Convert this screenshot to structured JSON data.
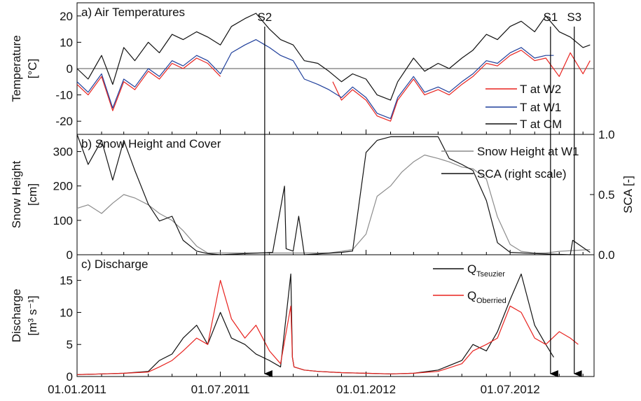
{
  "chart_data": [
    {
      "type": "line",
      "title": "a) Air Temperatures",
      "ylabel": [
        "Temperature",
        "[°C]"
      ],
      "ylim": [
        -25,
        25
      ],
      "yticks": [
        -20,
        -10,
        0,
        10,
        20
      ],
      "x_range": [
        "2011-01-01",
        "2012-10-15"
      ],
      "zero_line": true,
      "legend_position": "lower-right",
      "series": [
        {
          "name": "T at W2",
          "color": "#e8231f",
          "x": [
            "2011-01-01",
            "2011-01-15",
            "2011-02-01",
            "2011-02-15",
            "2011-03-01",
            "2011-03-15",
            "2011-04-01",
            "2011-04-15",
            "2011-05-01",
            "2011-05-15",
            "2011-06-01",
            "2011-06-15",
            "2011-07-01"
          ],
          "values": [
            -6,
            -10,
            -3,
            -16,
            -5,
            -8,
            -1,
            -4,
            2,
            0,
            4,
            2,
            -3
          ]
        },
        {
          "name": "T at W2",
          "color": "#e8231f",
          "x": [
            "2011-11-20",
            "2011-12-01",
            "2011-12-15",
            "2012-01-01",
            "2012-01-15",
            "2012-02-01",
            "2012-02-10",
            "2012-03-01",
            "2012-03-15",
            "2012-04-01",
            "2012-04-15",
            "2012-05-01",
            "2012-05-15",
            "2012-06-01",
            "2012-06-15",
            "2012-07-01",
            "2012-07-15",
            "2012-08-01",
            "2012-08-15",
            "2012-09-01",
            "2012-09-15",
            "2012-10-01",
            "2012-10-10"
          ],
          "values": [
            -5,
            -12,
            -8,
            -12,
            -18,
            -20,
            -12,
            -4,
            -10,
            -8,
            -10,
            -6,
            -3,
            2,
            1,
            5,
            7,
            3,
            4,
            -3,
            6,
            -2,
            3
          ]
        },
        {
          "name": "T at W1",
          "color": "#1f3f9b",
          "x": [
            "2011-01-01",
            "2011-01-15",
            "2011-02-01",
            "2011-02-15",
            "2011-03-01",
            "2011-03-15",
            "2011-04-01",
            "2011-04-15",
            "2011-05-01",
            "2011-05-15",
            "2011-06-01",
            "2011-06-15",
            "2011-07-01",
            "2011-07-15",
            "2011-08-01",
            "2011-08-15",
            "2011-09-01",
            "2011-09-15",
            "2011-10-01",
            "2011-10-15",
            "2011-11-01",
            "2011-11-15",
            "2011-12-01",
            "2011-12-15",
            "2012-01-01",
            "2012-01-15",
            "2012-02-01",
            "2012-02-10",
            "2012-03-01",
            "2012-03-15",
            "2012-04-01",
            "2012-04-15",
            "2012-05-01",
            "2012-05-15",
            "2012-06-01",
            "2012-06-15",
            "2012-07-01",
            "2012-07-15",
            "2012-08-01",
            "2012-08-15",
            "2012-08-25"
          ],
          "values": [
            -5,
            -9,
            -2,
            -15,
            -4,
            -7,
            0,
            -3,
            3,
            1,
            5,
            3,
            -2,
            6,
            9,
            11,
            8,
            5,
            3,
            -4,
            -6,
            -8,
            -11,
            -7,
            -11,
            -17,
            -19,
            -11,
            -3,
            -9,
            -7,
            -9,
            -5,
            -2,
            3,
            2,
            6,
            8,
            4,
            5,
            5
          ]
        },
        {
          "name": "T at CM",
          "color": "#111111",
          "x": [
            "2011-01-01",
            "2011-01-15",
            "2011-02-01",
            "2011-02-15",
            "2011-03-01",
            "2011-03-15",
            "2011-04-01",
            "2011-04-15",
            "2011-05-01",
            "2011-05-15",
            "2011-06-01",
            "2011-06-15",
            "2011-07-01",
            "2011-07-15",
            "2011-08-01",
            "2011-08-15",
            "2011-09-01",
            "2011-09-15",
            "2011-10-01",
            "2011-10-15",
            "2011-11-01",
            "2011-11-15",
            "2011-12-01",
            "2011-12-15",
            "2012-01-01",
            "2012-01-15",
            "2012-02-01",
            "2012-02-10",
            "2012-03-01",
            "2012-03-15",
            "2012-04-01",
            "2012-04-15",
            "2012-05-01",
            "2012-05-15",
            "2012-06-01",
            "2012-06-15",
            "2012-07-01",
            "2012-07-15",
            "2012-08-01",
            "2012-08-15",
            "2012-09-01",
            "2012-09-15",
            "2012-10-01",
            "2012-10-10"
          ],
          "values": [
            0,
            -4,
            5,
            -6,
            8,
            3,
            10,
            6,
            13,
            11,
            14,
            12,
            9,
            16,
            19,
            21,
            15,
            11,
            9,
            3,
            2,
            -1,
            -5,
            -2,
            -4,
            -10,
            -12,
            -5,
            4,
            -1,
            2,
            0,
            4,
            7,
            13,
            11,
            16,
            18,
            14,
            20,
            14,
            12,
            8,
            9
          ]
        }
      ]
    },
    {
      "type": "line",
      "title": "b) Snow Height and Cover",
      "ylabel": [
        "Snow Height",
        "[cm]"
      ],
      "ylim": [
        0,
        350
      ],
      "yticks": [
        0,
        100,
        200,
        300
      ],
      "y2label": "SCA [-]",
      "y2lim": [
        0,
        1
      ],
      "y2ticks": [
        0.0,
        0.5,
        1.0
      ],
      "x_range": [
        "2011-01-01",
        "2012-10-15"
      ],
      "legend_position": "top-right",
      "series": [
        {
          "name": "Snow Height at W1",
          "color": "#8c8c8c",
          "axis": "left",
          "x": [
            "2011-01-01",
            "2011-01-15",
            "2011-02-01",
            "2011-02-15",
            "2011-03-01",
            "2011-03-15",
            "2011-04-01",
            "2011-04-15",
            "2011-05-01",
            "2011-05-15",
            "2011-06-01",
            "2011-06-15",
            "2011-11-15",
            "2011-12-01",
            "2011-12-15",
            "2012-01-01",
            "2012-01-15",
            "2012-02-01",
            "2012-02-15",
            "2012-03-01",
            "2012-03-15",
            "2012-04-01",
            "2012-04-15",
            "2012-05-01",
            "2012-05-15",
            "2012-06-01",
            "2012-06-15",
            "2012-07-01",
            "2012-07-15",
            "2012-08-01",
            "2012-08-15",
            "2012-09-01",
            "2012-10-10"
          ],
          "values": [
            135,
            145,
            120,
            150,
            175,
            165,
            145,
            120,
            100,
            70,
            25,
            5,
            5,
            10,
            15,
            60,
            170,
            200,
            240,
            270,
            290,
            280,
            270,
            255,
            250,
            220,
            110,
            30,
            10,
            5,
            5,
            10,
            15
          ]
        },
        {
          "name": "SCA (right scale)",
          "color": "#111111",
          "axis": "right",
          "x": [
            "2011-01-01",
            "2011-01-15",
            "2011-02-01",
            "2011-02-15",
            "2011-03-01",
            "2011-03-15",
            "2011-04-01",
            "2011-04-15",
            "2011-05-01",
            "2011-05-15",
            "2011-06-01",
            "2011-06-15",
            "2011-07-01",
            "2011-09-05",
            "2011-09-20",
            "2011-09-22",
            "2011-10-01",
            "2011-10-08",
            "2011-10-15",
            "2011-12-01",
            "2011-12-15",
            "2012-01-01",
            "2012-01-15",
            "2012-02-01",
            "2012-03-01",
            "2012-04-01",
            "2012-04-15",
            "2012-05-01",
            "2012-05-15",
            "2012-06-01",
            "2012-06-15",
            "2012-07-01",
            "2012-08-01",
            "2012-09-15",
            "2012-09-18",
            "2012-10-10"
          ],
          "values": [
            1.0,
            0.75,
            0.95,
            0.62,
            0.95,
            0.7,
            0.42,
            0.28,
            0.32,
            0.12,
            0.03,
            0.01,
            0.0,
            0.02,
            0.57,
            0.05,
            0.03,
            0.32,
            0.0,
            0.02,
            0.03,
            0.85,
            0.95,
            0.98,
            0.98,
            0.98,
            0.8,
            0.75,
            0.7,
            0.45,
            0.1,
            0.02,
            0.01,
            0.0,
            0.12,
            0.02
          ]
        }
      ]
    },
    {
      "type": "line",
      "title": "c) Discharge",
      "ylabel": [
        "Discharge",
        "[m³ s⁻¹]"
      ],
      "ylim": [
        0,
        19
      ],
      "yticks": [
        0,
        5,
        10,
        15
      ],
      "x_range": [
        "2011-01-01",
        "2012-10-15"
      ],
      "xticks": [
        "01.01.2011",
        "01.07.2011",
        "01.01.2012",
        "01.07.2012"
      ],
      "legend_position": "top-right",
      "series": [
        {
          "name": "Q",
          "subscript": "Tseuzier",
          "color": "#111111",
          "x": [
            "2011-01-01",
            "2011-02-01",
            "2011-03-01",
            "2011-04-01",
            "2011-04-15",
            "2011-05-01",
            "2011-05-15",
            "2011-06-01",
            "2011-06-15",
            "2011-07-01",
            "2011-07-15",
            "2011-08-01",
            "2011-08-15",
            "2011-09-01",
            "2011-09-15",
            "2011-09-28",
            "2011-09-30",
            "2011-10-02",
            "2011-10-15",
            "2011-11-01",
            "2011-12-01",
            "2012-01-01",
            "2012-02-01",
            "2012-03-01",
            "2012-04-01",
            "2012-05-01",
            "2012-05-15",
            "2012-06-01",
            "2012-06-15",
            "2012-07-01",
            "2012-07-15",
            "2012-08-01",
            "2012-08-15",
            "2012-08-25"
          ],
          "values": [
            0.3,
            0.4,
            0.5,
            0.8,
            2.5,
            3.5,
            6,
            8,
            5,
            10,
            6,
            5,
            3.5,
            2.5,
            1.5,
            16,
            3,
            1.5,
            1,
            0.8,
            0.6,
            0.5,
            0.4,
            0.5,
            1,
            2.5,
            5,
            4,
            7,
            12,
            16,
            8,
            5,
            3
          ]
        },
        {
          "name": "Q",
          "subscript": "Oberried",
          "color": "#e8231f",
          "x": [
            "2011-01-01",
            "2011-02-01",
            "2011-03-01",
            "2011-04-01",
            "2011-04-15",
            "2011-05-01",
            "2011-05-15",
            "2011-06-01",
            "2011-06-15",
            "2011-07-01",
            "2011-07-15",
            "2011-08-01",
            "2011-08-15",
            "2011-09-01",
            "2011-09-15",
            "2011-09-28",
            "2011-09-30",
            "2011-10-02",
            "2011-10-15",
            "2011-11-01",
            "2011-12-01",
            "2012-01-01",
            "2012-02-01",
            "2012-03-01",
            "2012-04-01",
            "2012-05-01",
            "2012-05-15",
            "2012-06-01",
            "2012-06-15",
            "2012-07-01",
            "2012-07-15",
            "2012-08-01",
            "2012-08-15",
            "2012-09-01",
            "2012-09-15",
            "2012-09-25"
          ],
          "values": [
            0.3,
            0.4,
            0.5,
            0.7,
            1.5,
            2.5,
            4,
            6,
            5,
            15,
            9,
            6,
            8,
            4,
            2,
            11,
            3,
            1.5,
            1,
            0.8,
            0.6,
            0.5,
            0.4,
            0.5,
            0.8,
            2,
            4,
            5,
            6,
            11,
            10,
            6,
            5,
            7,
            6,
            5
          ]
        }
      ]
    }
  ],
  "events": [
    {
      "label": "S2",
      "date": "2011-08-26"
    },
    {
      "label": "S1",
      "date": "2012-08-21"
    },
    {
      "label": "S3",
      "date": "2012-09-20"
    }
  ]
}
